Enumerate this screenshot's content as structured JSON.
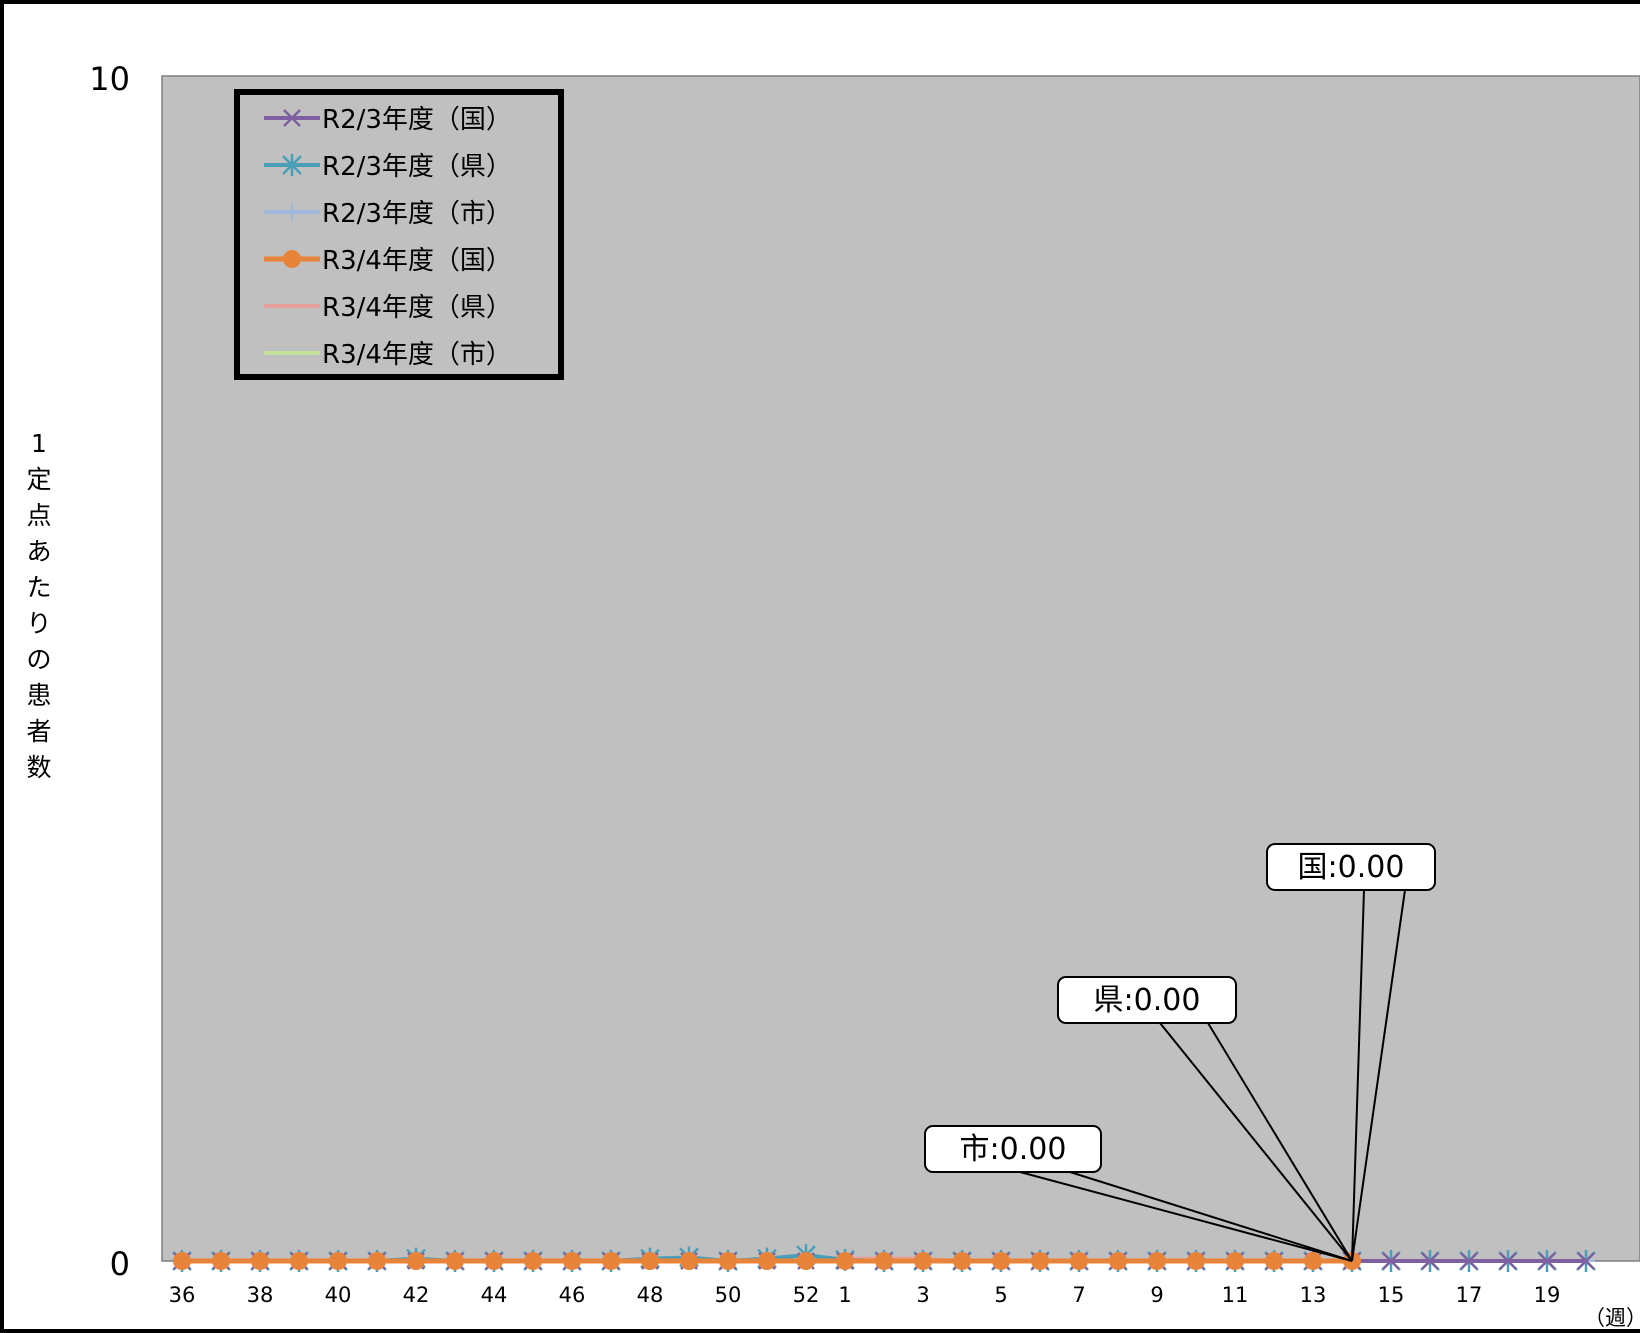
{
  "chart_data": {
    "type": "line",
    "ylabel": "1定点あたりの患者数",
    "xunit": "（週）",
    "ylim": [
      0,
      10
    ],
    "yticks": [
      0,
      10
    ],
    "grid": false,
    "legend_position": "top-left",
    "weeks": [
      "36",
      "37",
      "38",
      "39",
      "40",
      "41",
      "42",
      "43",
      "44",
      "45",
      "46",
      "47",
      "48",
      "49",
      "50",
      "51",
      "52",
      "1",
      "2",
      "3",
      "4",
      "5",
      "6",
      "7",
      "8",
      "9",
      "10",
      "11",
      "12",
      "13",
      "14",
      "15",
      "16",
      "17",
      "18",
      "19",
      "20"
    ],
    "xtick_labels": [
      "36",
      "38",
      "40",
      "42",
      "44",
      "46",
      "48",
      "50",
      "52",
      "1",
      "3",
      "5",
      "7",
      "9",
      "11",
      "13",
      "15",
      "17",
      "19"
    ],
    "series": [
      {
        "name": "R2/3年度（国）",
        "color": "#7f5f9f",
        "marker": "x",
        "values": [
          0,
          0,
          0,
          0,
          0,
          0,
          0,
          0,
          0,
          0,
          0,
          0,
          0,
          0,
          0,
          0,
          0,
          0,
          0,
          0,
          0,
          0,
          0,
          0,
          0,
          0,
          0,
          0,
          0,
          0,
          0,
          0,
          0,
          0,
          0,
          0,
          0
        ]
      },
      {
        "name": "R2/3年度（県）",
        "color": "#4a9fb8",
        "marker": "star",
        "values": [
          0,
          0,
          0,
          0,
          0,
          0,
          0.02,
          0,
          0,
          0,
          0,
          0,
          0.02,
          0.03,
          0,
          0.02,
          0.05,
          0.01,
          0,
          0,
          0,
          0,
          0,
          0,
          0,
          0,
          0,
          0,
          0,
          0,
          0,
          0,
          0,
          0,
          0,
          0,
          0
        ]
      },
      {
        "name": "R2/3年度（市）",
        "color": "#9fb8dc",
        "marker": "plus",
        "values": [
          0,
          0,
          0,
          0,
          0,
          0,
          0,
          0,
          0,
          0,
          0,
          0,
          0,
          0,
          0,
          0,
          0,
          0,
          0,
          0,
          0,
          0,
          0,
          0,
          0,
          0,
          0,
          0,
          0,
          0,
          0,
          0,
          0,
          0,
          0,
          0,
          0
        ]
      },
      {
        "name": "R3/4年度（国）",
        "color": "#e8843a",
        "marker": "circle",
        "values": [
          0,
          0,
          0,
          0,
          0,
          0,
          0,
          0,
          0,
          0,
          0,
          0,
          0,
          0,
          0,
          0,
          0,
          0,
          0,
          0,
          0,
          0,
          0,
          0,
          0,
          0,
          0,
          0,
          0,
          0,
          0
        ]
      },
      {
        "name": "R3/4年度（県）",
        "color": "#e8a09c",
        "marker": "none",
        "values": [
          0,
          0,
          0,
          0,
          0,
          0,
          0,
          0,
          0,
          0,
          0,
          0,
          0,
          0,
          0,
          0,
          0,
          0.02,
          0.02,
          0.02,
          0,
          0,
          0,
          0,
          0,
          0,
          0,
          0,
          0,
          0,
          0
        ]
      },
      {
        "name": "R3/4年度（市）",
        "color": "#c3df9a",
        "marker": "none",
        "values": [
          0,
          0,
          0,
          0,
          0,
          0,
          0,
          0,
          0,
          0,
          0,
          0,
          0,
          0,
          0,
          0,
          0.05,
          0,
          0,
          0,
          0,
          0,
          0,
          0,
          0,
          0,
          0,
          0,
          0,
          0,
          0
        ]
      }
    ],
    "annotations": [
      {
        "text": "国:0.00",
        "week": "14",
        "value": 0
      },
      {
        "text": "県:0.00",
        "week": "14",
        "value": 0
      },
      {
        "text": "市:0.00",
        "week": "14",
        "value": 0
      }
    ]
  }
}
